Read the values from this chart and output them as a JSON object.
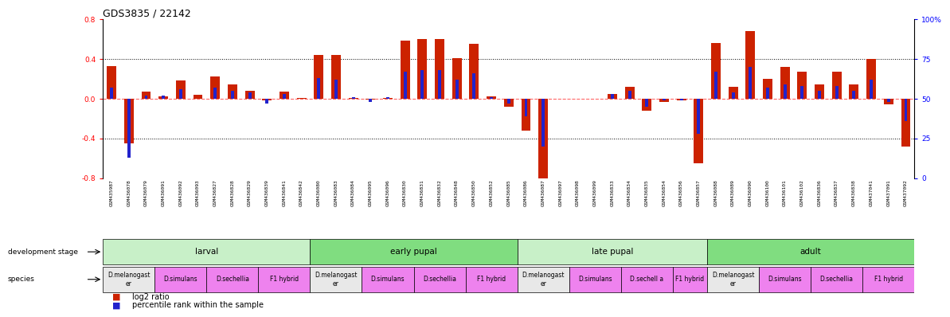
{
  "title": "GDS3835 / 22142",
  "samples": [
    "GSM435987",
    "GSM436078",
    "GSM436079",
    "GSM436091",
    "GSM436092",
    "GSM436093",
    "GSM436827",
    "GSM436828",
    "GSM436829",
    "GSM436839",
    "GSM436841",
    "GSM436842",
    "GSM436080",
    "GSM436083",
    "GSM436084",
    "GSM436095",
    "GSM436096",
    "GSM436830",
    "GSM436831",
    "GSM436832",
    "GSM436848",
    "GSM436850",
    "GSM436852",
    "GSM436085",
    "GSM436086",
    "GSM436087",
    "GSM436097",
    "GSM436098",
    "GSM436099",
    "GSM436833",
    "GSM436834",
    "GSM436835",
    "GSM436854",
    "GSM436856",
    "GSM436857",
    "GSM436088",
    "GSM436089",
    "GSM436090",
    "GSM436100",
    "GSM436101",
    "GSM436102",
    "GSM436836",
    "GSM436837",
    "GSM436838",
    "GSM437041",
    "GSM437091",
    "GSM437092"
  ],
  "log2_ratio": [
    0.33,
    -0.45,
    0.07,
    0.02,
    0.18,
    0.04,
    0.22,
    0.14,
    0.08,
    -0.02,
    0.07,
    0.01,
    0.44,
    0.44,
    0.01,
    -0.01,
    0.01,
    0.58,
    0.6,
    0.6,
    0.41,
    0.55,
    0.02,
    -0.08,
    -0.32,
    -0.82,
    0.0,
    0.0,
    0.0,
    0.05,
    0.12,
    -0.12,
    -0.03,
    -0.02,
    -0.65,
    0.56,
    0.12,
    0.68,
    0.2,
    0.32,
    0.27,
    0.14,
    0.27,
    0.14,
    0.4,
    -0.06,
    -0.48
  ],
  "percentile": [
    57,
    13,
    52,
    52,
    56,
    50,
    57,
    55,
    54,
    47,
    53,
    50,
    63,
    62,
    51,
    48,
    51,
    67,
    68,
    68,
    62,
    66,
    51,
    47,
    39,
    20,
    50,
    50,
    50,
    53,
    55,
    45,
    49,
    49,
    28,
    67,
    54,
    70,
    57,
    59,
    58,
    55,
    58,
    55,
    62,
    48,
    36
  ],
  "dev_stages": [
    {
      "label": "larval",
      "start": 0,
      "end": 12,
      "color": "#C8F0C8"
    },
    {
      "label": "early pupal",
      "start": 12,
      "end": 24,
      "color": "#80DD80"
    },
    {
      "label": "late pupal",
      "start": 24,
      "end": 35,
      "color": "#C8F0C8"
    },
    {
      "label": "adult",
      "start": 35,
      "end": 47,
      "color": "#80DD80"
    }
  ],
  "species_groups": [
    {
      "label": "D.melanogast\ner",
      "start": 0,
      "end": 3,
      "color": "#E8E8E8"
    },
    {
      "label": "D.simulans",
      "start": 3,
      "end": 6,
      "color": "#EE82EE"
    },
    {
      "label": "D.sechellia",
      "start": 6,
      "end": 9,
      "color": "#EE82EE"
    },
    {
      "label": "F1 hybrid",
      "start": 9,
      "end": 12,
      "color": "#EE82EE"
    },
    {
      "label": "D.melanogast\ner",
      "start": 12,
      "end": 15,
      "color": "#E8E8E8"
    },
    {
      "label": "D.simulans",
      "start": 15,
      "end": 18,
      "color": "#EE82EE"
    },
    {
      "label": "D.sechellia",
      "start": 18,
      "end": 21,
      "color": "#EE82EE"
    },
    {
      "label": "F1 hybrid",
      "start": 21,
      "end": 24,
      "color": "#EE82EE"
    },
    {
      "label": "D.melanogast\ner",
      "start": 24,
      "end": 27,
      "color": "#E8E8E8"
    },
    {
      "label": "D.simulans",
      "start": 27,
      "end": 30,
      "color": "#EE82EE"
    },
    {
      "label": "D.sechell a",
      "start": 30,
      "end": 33,
      "color": "#EE82EE"
    },
    {
      "label": "F1 hybrid",
      "start": 33,
      "end": 35,
      "color": "#EE82EE"
    },
    {
      "label": "D.melanogast\ner",
      "start": 35,
      "end": 38,
      "color": "#E8E8E8"
    },
    {
      "label": "D.simulans",
      "start": 38,
      "end": 41,
      "color": "#EE82EE"
    },
    {
      "label": "D.sechellia",
      "start": 41,
      "end": 44,
      "color": "#EE82EE"
    },
    {
      "label": "F1 hybrid",
      "start": 44,
      "end": 47,
      "color": "#EE82EE"
    }
  ],
  "ylim": [
    -0.8,
    0.8
  ],
  "yticks_left": [
    -0.8,
    -0.4,
    0.0,
    0.4,
    0.8
  ],
  "yticks_right": [
    0,
    25,
    50,
    75,
    100
  ],
  "bar_color_red": "#CC2200",
  "bar_color_blue": "#2222CC",
  "hline_color": "#FF6666",
  "dotted_color": "black",
  "bg_color": "white",
  "title_fontsize": 9,
  "tick_fontsize": 6.5,
  "sample_fontsize": 4.5,
  "stage_fontsize": 7.5,
  "species_fontsize": 5.5,
  "legend_fontsize": 7
}
